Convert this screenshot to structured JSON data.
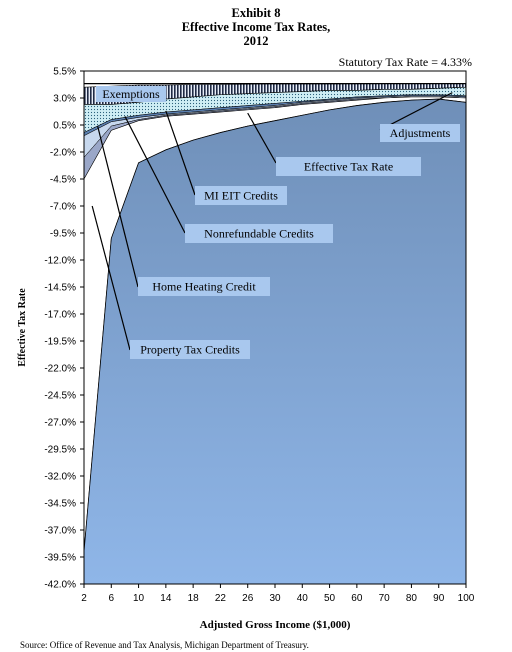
{
  "header": {
    "exhibit": "Exhibit 8",
    "title": "Effective Income Tax Rates,",
    "year": "2012",
    "statutory_note": "Statutory Tax Rate = 4.33%"
  },
  "source": "Source:   Office of Revenue and Tax Analysis, Michigan Department of Treasury.",
  "colors": {
    "effective_fill": "#8fb6e8",
    "effective_fill_dark": "#6f8fb8",
    "credits_fill": "#ffffff",
    "adjustments_fill": "#cfeef5",
    "exemptions_fill": "#1f2a44",
    "callout_bg": "#a9c8ee"
  },
  "chart_data": {
    "type": "area",
    "xlabel": "Adjusted Gross Income ($1,000)",
    "ylabel": "Effective Tax Rate",
    "x_ticks": [
      "2",
      "6",
      "10",
      "14",
      "18",
      "22",
      "26",
      "30",
      "40",
      "50",
      "60",
      "70",
      "80",
      "90",
      "100"
    ],
    "y_ticks": [
      "5.5%",
      "3.0%",
      "0.5%",
      "-2.0%",
      "-4.5%",
      "-7.0%",
      "-9.5%",
      "-12.0%",
      "-14.5%",
      "-17.0%",
      "-19.5%",
      "-22.0%",
      "-24.5%",
      "-27.0%",
      "-29.5%",
      "-32.0%",
      "-34.5%",
      "-37.0%",
      "-39.5%",
      "-42.0%"
    ],
    "ylim": [
      -42.0,
      5.5
    ],
    "statutory_rate": 4.33,
    "series": [
      {
        "name": "Effective Tax Rate",
        "points": [
          [
            0,
            -39
          ],
          [
            1,
            -10
          ],
          [
            2,
            -3
          ],
          [
            3,
            -1.8
          ],
          [
            4,
            -0.9
          ],
          [
            5,
            -0.2
          ],
          [
            6,
            0.4
          ],
          [
            7,
            0.9
          ],
          [
            8,
            1.4
          ],
          [
            9,
            1.9
          ],
          [
            10,
            2.3
          ],
          [
            11,
            2.6
          ],
          [
            12,
            2.8
          ],
          [
            13,
            2.9
          ],
          [
            14,
            2.6
          ]
        ]
      },
      {
        "name": "Property Tax Credits",
        "points": [
          [
            0,
            -4.5
          ],
          [
            1,
            0.0
          ],
          [
            2,
            0.9
          ],
          [
            3,
            1.3
          ],
          [
            4,
            1.5
          ],
          [
            5,
            1.7
          ],
          [
            6,
            1.9
          ],
          [
            7,
            2.1
          ],
          [
            8,
            2.4
          ],
          [
            9,
            2.6
          ],
          [
            10,
            2.8
          ],
          [
            11,
            3.0
          ],
          [
            12,
            3.1
          ],
          [
            13,
            3.1
          ],
          [
            14,
            3.0
          ]
        ]
      },
      {
        "name": "Home Heating Credit",
        "points": [
          [
            0,
            -2.5
          ],
          [
            1,
            0.4
          ],
          [
            2,
            1.0
          ],
          [
            3,
            1.4
          ],
          [
            4,
            1.6
          ],
          [
            5,
            1.8
          ],
          [
            6,
            2.0
          ],
          [
            7,
            2.2
          ],
          [
            8,
            2.5
          ],
          [
            9,
            2.7
          ],
          [
            10,
            2.9
          ],
          [
            11,
            3.0
          ],
          [
            12,
            3.1
          ],
          [
            13,
            3.1
          ],
          [
            14,
            3.0
          ]
        ]
      },
      {
        "name": "Nonrefundable Credits",
        "points": [
          [
            0,
            -0.5
          ],
          [
            1,
            0.8
          ],
          [
            2,
            1.2
          ],
          [
            3,
            1.5
          ],
          [
            4,
            1.7
          ],
          [
            5,
            1.9
          ],
          [
            6,
            2.1
          ],
          [
            7,
            2.3
          ],
          [
            8,
            2.6
          ],
          [
            9,
            2.8
          ],
          [
            10,
            3.0
          ],
          [
            11,
            3.1
          ],
          [
            12,
            3.2
          ],
          [
            13,
            3.2
          ],
          [
            14,
            3.1
          ]
        ]
      },
      {
        "name": "MI EIT Credits",
        "points": [
          [
            0,
            -0.2
          ],
          [
            1,
            1.0
          ],
          [
            2,
            1.4
          ],
          [
            3,
            1.7
          ],
          [
            4,
            1.9
          ],
          [
            5,
            2.1
          ],
          [
            6,
            2.3
          ],
          [
            7,
            2.5
          ],
          [
            8,
            2.7
          ],
          [
            9,
            2.9
          ],
          [
            10,
            3.1
          ],
          [
            11,
            3.2
          ],
          [
            12,
            3.3
          ],
          [
            13,
            3.3
          ],
          [
            14,
            3.2
          ]
        ]
      },
      {
        "name": "Adjustments",
        "points": [
          [
            0,
            2.4
          ],
          [
            1,
            2.4
          ],
          [
            2,
            2.6
          ],
          [
            3,
            2.9
          ],
          [
            4,
            3.1
          ],
          [
            5,
            3.3
          ],
          [
            6,
            3.4
          ],
          [
            7,
            3.5
          ],
          [
            8,
            3.6
          ],
          [
            9,
            3.7
          ],
          [
            10,
            3.7
          ],
          [
            11,
            3.8
          ],
          [
            12,
            3.8
          ],
          [
            13,
            3.9
          ],
          [
            14,
            4.0
          ]
        ]
      },
      {
        "name": "Exemptions",
        "points": [
          [
            0,
            4.0
          ],
          [
            1,
            4.1
          ],
          [
            2,
            4.2
          ],
          [
            3,
            4.2
          ],
          [
            4,
            4.25
          ],
          [
            5,
            4.25
          ],
          [
            6,
            4.28
          ],
          [
            7,
            4.3
          ],
          [
            8,
            4.3
          ],
          [
            9,
            4.3
          ],
          [
            10,
            4.31
          ],
          [
            11,
            4.32
          ],
          [
            12,
            4.32
          ],
          [
            13,
            4.33
          ],
          [
            14,
            4.33
          ]
        ]
      }
    ],
    "annotations": [
      {
        "text": "Exemptions",
        "target_x": 1,
        "target_y": 4.1
      },
      {
        "text": "Adjustments",
        "target_x": 13.5,
        "target_y": 3.5
      },
      {
        "text": "Effective Tax Rate",
        "target_x": 6,
        "target_y": 1.6
      },
      {
        "text": "MI EIT Credits",
        "target_x": 3,
        "target_y": 1.8
      },
      {
        "text": "Nonrefundable Credits",
        "target_x": 1.5,
        "target_y": 1.3
      },
      {
        "text": "Home Heating Credit",
        "target_x": 0.5,
        "target_y": 0.4
      },
      {
        "text": "Property Tax Credits",
        "target_x": 0.3,
        "target_y": -7.0
      }
    ]
  }
}
